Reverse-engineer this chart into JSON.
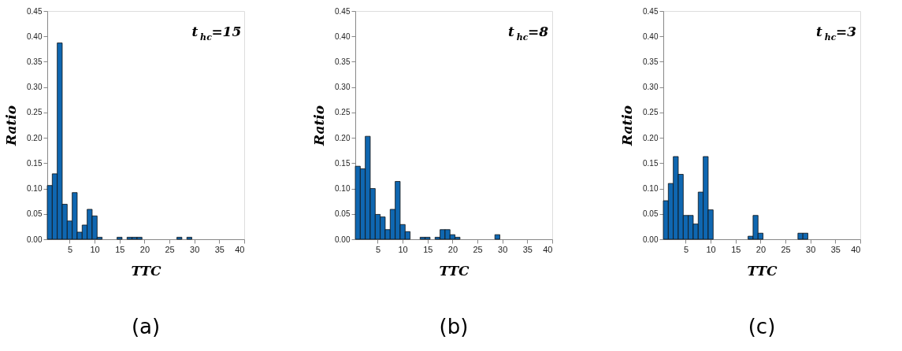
{
  "chart_data": [
    {
      "type": "histogram",
      "xlabel": "TTC",
      "ylabel": "Ratio",
      "color": "#0f67b1",
      "bins": [
        0.5,
        1.5,
        2.5,
        3.5,
        4.5,
        5.5,
        6.5,
        7.5,
        8.5,
        9.5,
        10.5,
        11.5,
        12.5,
        13.5,
        14.5,
        15.5,
        16.5,
        17.5,
        18.5,
        19.5,
        20.5,
        21.5,
        22.5,
        23.5,
        24.5,
        25.5,
        26.5,
        27.5,
        28.5,
        29.5
      ],
      "values": [
        0.106,
        0.129,
        0.387,
        0.069,
        0.036,
        0.092,
        0.014,
        0.028,
        0.059,
        0.046,
        0.004,
        0,
        0,
        0,
        0.004,
        0,
        0.004,
        0.004,
        0.004,
        0,
        0,
        0,
        0,
        0,
        0,
        0,
        0.004,
        0,
        0.004
      ],
      "xlim": [
        0.5,
        40
      ],
      "xticks": [
        5,
        10,
        15,
        20,
        25,
        30,
        35,
        40
      ],
      "ylim": [
        0,
        0.45
      ],
      "yticks": [
        {
          "value": 0,
          "label": "0.00"
        },
        {
          "value": 0.05,
          "label": "0.05"
        },
        {
          "value": 0.1,
          "label": "0.10"
        },
        {
          "value": 0.15,
          "label": "0.15"
        },
        {
          "value": 0.2,
          "label": "0.20"
        },
        {
          "value": 0.25,
          "label": "0.25"
        },
        {
          "value": 0.3,
          "label": "0.30"
        },
        {
          "value": 0.35,
          "label": "0.35"
        },
        {
          "value": 0.4,
          "label": "0.40"
        },
        {
          "value": 0.45,
          "label": "0.45"
        }
      ],
      "grid": false,
      "annotations": [
        "t$_{hc}$=15",
        "(a)"
      ]
    },
    {
      "type": "histogram",
      "xlabel": "TTC",
      "ylabel": "Ratio",
      "color": "#0f67b1",
      "bins": [
        0.5,
        1.5,
        2.5,
        3.5,
        4.5,
        5.5,
        6.5,
        7.5,
        8.5,
        9.5,
        10.5,
        11.5,
        12.5,
        13.5,
        14.5,
        15.5,
        16.5,
        17.5,
        18.5,
        19.5,
        20.5,
        21.5,
        22.5,
        23.5,
        24.5,
        25.5,
        26.5,
        27.5,
        28.5,
        29.5
      ],
      "values": [
        0.144,
        0.139,
        0.203,
        0.1,
        0.049,
        0.044,
        0.019,
        0.059,
        0.114,
        0.029,
        0.015,
        0,
        0,
        0.004,
        0.004,
        0,
        0.004,
        0.019,
        0.019,
        0.009,
        0.004,
        0,
        0,
        0,
        0,
        0,
        0,
        0,
        0.009
      ],
      "xlim": [
        0.5,
        40
      ],
      "xticks": [
        5,
        10,
        15,
        20,
        25,
        30,
        35,
        40
      ],
      "ylim": [
        0,
        0.45
      ],
      "yticks": [
        {
          "value": 0,
          "label": "0.00"
        },
        {
          "value": 0.05,
          "label": "0.05"
        },
        {
          "value": 0.1,
          "label": "0.10"
        },
        {
          "value": 0.15,
          "label": "0.15"
        },
        {
          "value": 0.2,
          "label": "0.20"
        },
        {
          "value": 0.25,
          "label": "0.25"
        },
        {
          "value": 0.3,
          "label": "0.30"
        },
        {
          "value": 0.35,
          "label": "0.35"
        },
        {
          "value": 0.4,
          "label": "0.40"
        },
        {
          "value": 0.45,
          "label": "0.45"
        }
      ],
      "grid": false,
      "annotations": [
        "t$_{hc}$=8",
        "(b)"
      ]
    },
    {
      "type": "histogram",
      "xlabel": "TTC",
      "ylabel": "Ratio",
      "color": "#0f67b1",
      "bins": [
        0.5,
        1.5,
        2.5,
        3.5,
        4.5,
        5.5,
        6.5,
        7.5,
        8.5,
        9.5,
        10.5,
        11.5,
        12.5,
        13.5,
        14.5,
        15.5,
        16.5,
        17.5,
        18.5,
        19.5,
        20.5,
        21.5,
        22.5,
        23.5,
        24.5,
        25.5,
        26.5,
        27.5,
        28.5,
        29.5
      ],
      "values": [
        0.076,
        0.11,
        0.163,
        0.128,
        0.047,
        0.047,
        0.03,
        0.093,
        0.163,
        0.058,
        0,
        0,
        0,
        0,
        0,
        0,
        0,
        0.006,
        0.047,
        0.012,
        0,
        0,
        0,
        0,
        0,
        0,
        0,
        0.012,
        0.012
      ],
      "xlim": [
        0.5,
        40
      ],
      "xticks": [
        5,
        10,
        15,
        20,
        25,
        30,
        35,
        40
      ],
      "ylim": [
        0,
        0.45
      ],
      "yticks": [
        {
          "value": 0,
          "label": "0.00"
        },
        {
          "value": 0.05,
          "label": "0.05"
        },
        {
          "value": 0.1,
          "label": "0.10"
        },
        {
          "value": 0.15,
          "label": "0.15"
        },
        {
          "value": 0.2,
          "label": "0.20"
        },
        {
          "value": 0.25,
          "label": "0.25"
        },
        {
          "value": 0.3,
          "label": "0.30"
        },
        {
          "value": 0.35,
          "label": "0.35"
        },
        {
          "value": 0.4,
          "label": "0.40"
        },
        {
          "value": 0.45,
          "label": "0.45"
        }
      ],
      "grid": false,
      "annotations": [
        "t$_{hc}$=3",
        "(c)"
      ]
    }
  ]
}
